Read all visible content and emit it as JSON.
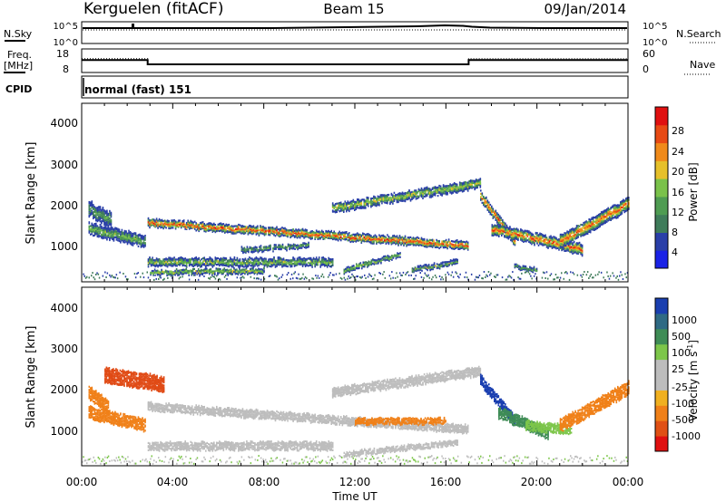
{
  "header": {
    "station": "Kerguelen (fitACF)",
    "beam": "Beam 15",
    "date": "09/Jan/2014"
  },
  "colors": {
    "power_scale": [
      "#1a22e6",
      "#2a3fa8",
      "#3f7c5a",
      "#4f9c52",
      "#7ac24a",
      "#e6c02a",
      "#f08a1a",
      "#e84a14",
      "#e01010"
    ],
    "velocity_scale": [
      "#1a3fb0",
      "#2f6a84",
      "#3f8c56",
      "#7dc64a",
      "#bdbdbd",
      "#bdbdbd",
      "#f0b020",
      "#f08018",
      "#e05014",
      "#e01010"
    ]
  },
  "chart_data": [
    {
      "type": "line",
      "panel": "noise",
      "left_label": "N.Sky",
      "right_label": "N.Search",
      "yticks_left": [
        "10^5",
        "10^0"
      ],
      "yticks_right": [
        "10^5",
        "10^0"
      ],
      "x": [
        "00:00",
        "04:00",
        "08:00",
        "12:00",
        "16:00",
        "20:00",
        "00:00"
      ]
    },
    {
      "type": "line",
      "panel": "frequency",
      "left_label": "Freq.",
      "left_unit": "[MHz]",
      "right_label": "Nave",
      "yticks_left": [
        "18",
        "8"
      ],
      "yticks_right": [
        "60",
        "0"
      ],
      "freq_series": {
        "x_hours": [
          0,
          2.9,
          2.9,
          17,
          17,
          24
        ],
        "values": [
          13.5,
          13.5,
          11.5,
          11.5,
          13.5,
          13.5
        ],
        "ylim": [
          8,
          18
        ]
      },
      "nave_series": {
        "x_hours": [
          0,
          2.9,
          2.9,
          17,
          17,
          24
        ],
        "values": [
          37,
          37,
          21,
          21,
          37,
          37
        ],
        "ylim": [
          0,
          60
        ]
      }
    },
    {
      "type": "heatmap",
      "panel": "cpid",
      "left_label": "CPID",
      "program": "normal (fast) 151"
    },
    {
      "type": "heatmap",
      "panel": "power",
      "ylabel": "Slant Range [km]",
      "yticks": [
        "4000",
        "3000",
        "2000",
        "1000"
      ],
      "ylim": [
        200,
        4500
      ],
      "colorbar_label": "Power [dB]",
      "colorbar_ticks": [
        "28",
        "24",
        "20",
        "16",
        "12",
        "8",
        "4"
      ],
      "xlim_hours": [
        0,
        24
      ]
    },
    {
      "type": "heatmap",
      "panel": "velocity",
      "ylabel": "Slant Range [km]",
      "yticks": [
        "4000",
        "3000",
        "2000",
        "1000"
      ],
      "ylim": [
        200,
        4500
      ],
      "colorbar_label": "Velocity [m s",
      "colorbar_unit_exp": "-1",
      "colorbar_unit_end": "]",
      "colorbar_ticks": [
        "1000",
        "500",
        "100",
        "25",
        "-25",
        "-100",
        "-500",
        "-1000"
      ],
      "xlim_hours": [
        0,
        24
      ]
    }
  ],
  "xaxis": {
    "ticks": [
      "00:00",
      "04:00",
      "08:00",
      "12:00",
      "16:00",
      "20:00",
      "00:00"
    ],
    "label": "Time UT"
  }
}
